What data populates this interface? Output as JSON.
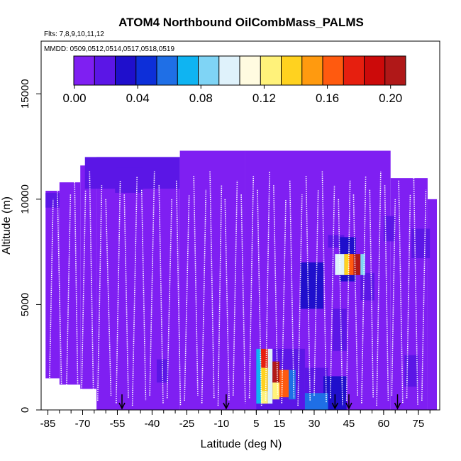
{
  "chart_data": {
    "type": "heatmap",
    "title": "ATOM4 Northbound OilCombMass_PALMS",
    "flights_note": "Flts: 7,8,9,10,11,12",
    "mmdd_note": "MMDD: 0509,0512,0514,0517,0518,0519",
    "xlabel": "Latitude (deg N)",
    "ylabel": "Altitude (m)",
    "xlim": [
      -87,
      83
    ],
    "ylim": [
      0,
      17500
    ],
    "x_ticks": [
      -85,
      -70,
      -55,
      -40,
      -25,
      -10,
      5,
      15,
      30,
      45,
      60,
      75
    ],
    "x_tick_labels": [
      "-85",
      "-70",
      "-55",
      "-40",
      "-25",
      "-10",
      "5",
      "15",
      "30",
      "45",
      "60",
      "75"
    ],
    "y_ticks": [
      0,
      5000,
      10000,
      15000
    ],
    "y_tick_labels": [
      "0",
      "5000",
      "10000",
      "15000"
    ],
    "colorbar": {
      "min": 0,
      "max": 0.21,
      "ticks": [
        0.0,
        0.04,
        0.08,
        0.12,
        0.16,
        0.2
      ],
      "tick_labels": [
        "0.00",
        "0.04",
        "0.08",
        "0.12",
        "0.16",
        "0.20"
      ],
      "colors": [
        "#7f1ff2",
        "#5b16e6",
        "#1f0fcc",
        "#0d2fd9",
        "#1f6fe6",
        "#0fb4f2",
        "#7fd4f5",
        "#dff2fb",
        "#fffbe0",
        "#fff27a",
        "#ffd21f",
        "#ff9a0f",
        "#ff5a0f",
        "#e61f0f",
        "#cc0a0a",
        "#b01818"
      ]
    },
    "profile_markers_lat": [
      -53,
      -8,
      39,
      45,
      66
    ],
    "background_value": 0.003,
    "coverage": [
      {
        "lat_from": -86,
        "lat_to": -80,
        "alt_from": 1500,
        "alt_to": 10400
      },
      {
        "lat_from": -80,
        "lat_to": -71,
        "alt_from": 1200,
        "alt_to": 10800
      },
      {
        "lat_from": -71,
        "lat_to": -64,
        "alt_from": 1000,
        "alt_to": 11600
      },
      {
        "lat_from": -64,
        "lat_to": -28,
        "alt_from": 0,
        "alt_to": 12000
      },
      {
        "lat_from": -28,
        "lat_to": 0,
        "alt_from": 0,
        "alt_to": 12300
      },
      {
        "lat_from": 0,
        "lat_to": 63,
        "alt_from": 0,
        "alt_to": 12300
      },
      {
        "lat_from": 63,
        "lat_to": 79,
        "alt_from": 0,
        "alt_to": 11000
      },
      {
        "lat_from": 79,
        "lat_to": 83,
        "alt_from": 0,
        "alt_to": 10000
      }
    ],
    "features": [
      {
        "lat_from": -69,
        "lat_to": -28,
        "alt_from": 10500,
        "alt_to": 12000,
        "value": 0.015
      },
      {
        "lat_from": -56,
        "lat_to": -44,
        "alt_from": 10300,
        "alt_to": 11500,
        "value": 0.02
      },
      {
        "lat_from": -86,
        "lat_to": -80,
        "alt_from": 9600,
        "alt_to": 10300,
        "value": 0.018
      },
      {
        "lat_from": -50,
        "lat_to": -42,
        "alt_from": 5600,
        "alt_to": 7300,
        "value": 0.012
      },
      {
        "lat_from": -62,
        "lat_to": -55,
        "alt_from": 4200,
        "alt_to": 5800,
        "value": 0.01
      },
      {
        "lat_from": -38,
        "lat_to": -33,
        "alt_from": 1300,
        "alt_to": 2400,
        "value": 0.02
      },
      {
        "lat_from": -25,
        "lat_to": -19,
        "alt_from": 2000,
        "alt_to": 3800,
        "value": 0.012
      },
      {
        "lat_from": -10,
        "lat_to": -3,
        "alt_from": 6800,
        "alt_to": 7800,
        "value": 0.01
      },
      {
        "lat_from": 4,
        "lat_to": 11,
        "alt_from": 2800,
        "alt_to": 4200,
        "value": 0.012
      },
      {
        "lat_from": 12,
        "lat_to": 18,
        "alt_from": 6100,
        "alt_to": 7600,
        "value": 0.01
      },
      {
        "lat_from": 24,
        "lat_to": 34,
        "alt_from": 4800,
        "alt_to": 7000,
        "value": 0.03
      },
      {
        "lat_from": 26,
        "lat_to": 36,
        "alt_from": 800,
        "alt_to": 2000,
        "value": 0.022
      },
      {
        "lat_from": 34,
        "lat_to": 44,
        "alt_from": 0,
        "alt_to": 1600,
        "value": 0.03
      },
      {
        "lat_from": 36,
        "lat_to": 43,
        "alt_from": 7700,
        "alt_to": 8300,
        "value": 0.022
      },
      {
        "lat_from": 41,
        "lat_to": 48,
        "alt_from": 6100,
        "alt_to": 8200,
        "value": 0.03
      },
      {
        "lat_from": 38,
        "lat_to": 44,
        "alt_from": 2800,
        "alt_to": 4800,
        "value": 0.022
      },
      {
        "lat_from": 50,
        "lat_to": 56,
        "alt_from": 5200,
        "alt_to": 6500,
        "value": 0.018
      },
      {
        "lat_from": 60,
        "lat_to": 65,
        "alt_from": 8000,
        "alt_to": 9200,
        "value": 0.02
      },
      {
        "lat_from": 69,
        "lat_to": 75,
        "alt_from": 1100,
        "alt_to": 2600,
        "value": 0.022
      },
      {
        "lat_from": 72,
        "lat_to": 80,
        "alt_from": 7200,
        "alt_to": 8600,
        "value": 0.015
      },
      {
        "lat_from": 5,
        "lat_to": 26,
        "alt_from": 0,
        "alt_to": 2900,
        "value": 0.025
      },
      {
        "lat_from": 26,
        "lat_to": 36,
        "alt_from": 0,
        "alt_to": 800,
        "value": 0.06
      },
      {
        "lat_from": 5,
        "lat_to": 9,
        "alt_from": 300,
        "alt_to": 2900,
        "value": 0.07
      },
      {
        "lat_from": 7,
        "lat_to": 10,
        "alt_from": 2000,
        "alt_to": 2900,
        "value": 0.18
      },
      {
        "lat_from": 7,
        "lat_to": 10,
        "alt_from": 900,
        "alt_to": 2000,
        "value": 0.14
      },
      {
        "lat_from": 7,
        "lat_to": 10,
        "alt_from": 300,
        "alt_to": 900,
        "value": 0.12
      },
      {
        "lat_from": 10,
        "lat_to": 12,
        "alt_from": 300,
        "alt_to": 2900,
        "value": 0.1
      },
      {
        "lat_from": 12,
        "lat_to": 15,
        "alt_from": 1300,
        "alt_to": 2300,
        "value": 0.2
      },
      {
        "lat_from": 12,
        "lat_to": 15,
        "alt_from": 500,
        "alt_to": 1300,
        "value": 0.13
      },
      {
        "lat_from": 15,
        "lat_to": 19,
        "alt_from": 600,
        "alt_to": 1900,
        "value": 0.16
      },
      {
        "lat_from": 19,
        "lat_to": 22,
        "alt_from": 500,
        "alt_to": 1900,
        "value": 0.06
      },
      {
        "lat_from": 39,
        "lat_to": 43,
        "alt_from": 6400,
        "alt_to": 7400,
        "value": 0.1
      },
      {
        "lat_from": 43,
        "lat_to": 45,
        "alt_from": 6400,
        "alt_to": 7400,
        "value": 0.14
      },
      {
        "lat_from": 45,
        "lat_to": 47,
        "alt_from": 6400,
        "alt_to": 7400,
        "value": 0.17
      },
      {
        "lat_from": 47,
        "lat_to": 50,
        "alt_from": 6400,
        "alt_to": 7400,
        "value": 0.2
      },
      {
        "lat_from": 50,
        "lat_to": 52,
        "alt_from": 6400,
        "alt_to": 7400,
        "value": 0.08
      }
    ],
    "flight_track_lats": [
      -84.5,
      -81,
      -77,
      -73.5,
      -70.5,
      -67,
      -63.5,
      -60,
      -55.5,
      -52,
      -48.5,
      -44.5,
      -41,
      -37,
      -33.5,
      -29.5,
      -26,
      -22,
      -18.5,
      -15,
      -11.5,
      -8.5,
      -5,
      -1.5,
      2,
      5.5,
      9,
      12.5,
      16,
      19.5,
      23,
      26.5,
      30,
      33.5,
      37,
      40.5,
      44,
      47,
      50.5,
      54,
      57,
      60.5,
      63.5,
      66.5,
      70,
      73,
      76.5,
      80
    ]
  }
}
